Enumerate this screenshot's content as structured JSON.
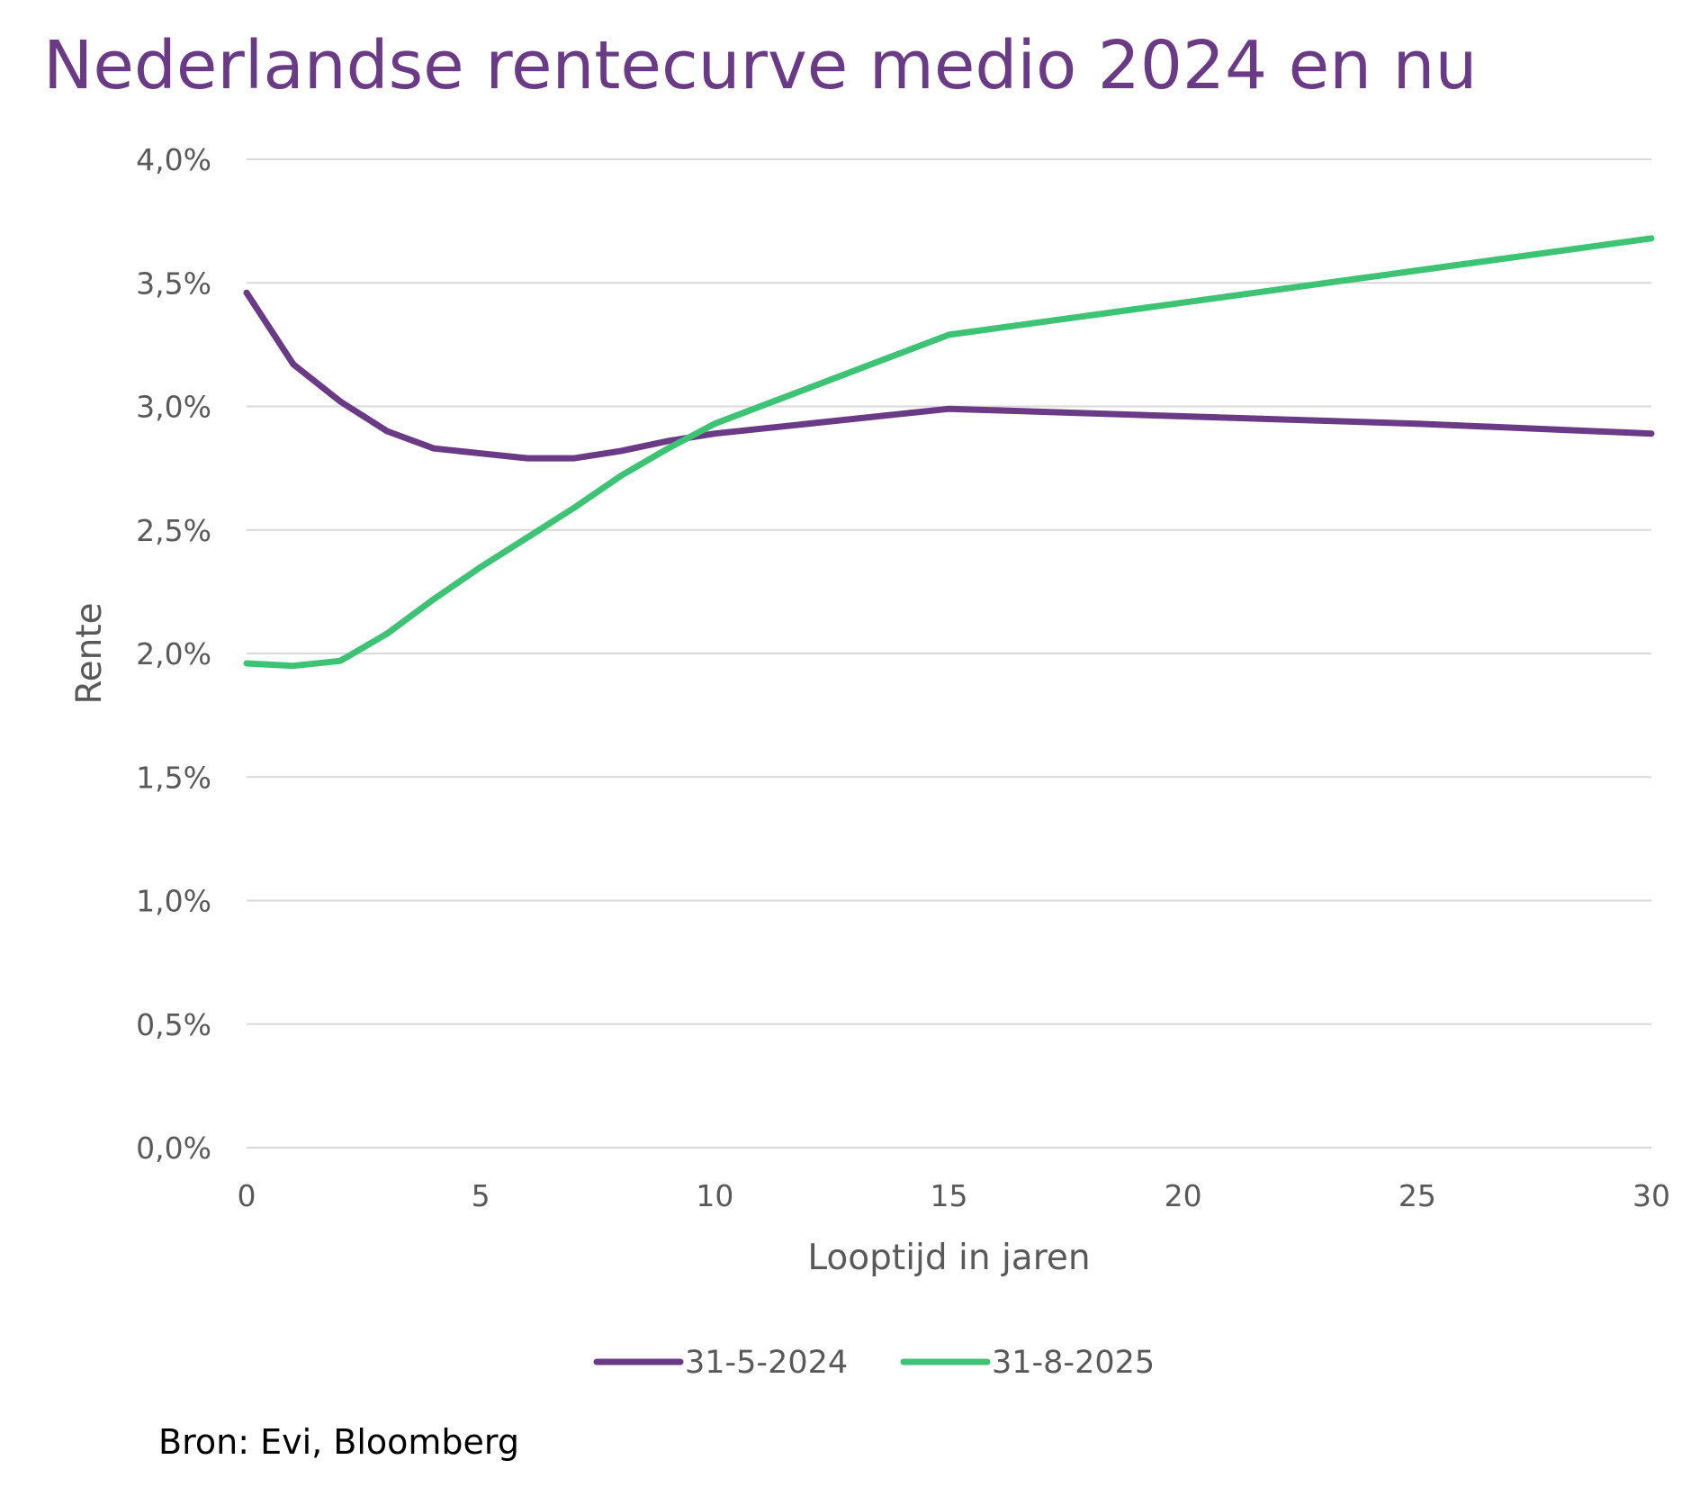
{
  "chart_data": {
    "type": "line",
    "title": "Nederlandse rentecurve medio 2024 en nu",
    "xlabel": "Looptijd in jaren",
    "ylabel": "Rente",
    "xlim": [
      0,
      30
    ],
    "ylim": [
      0,
      4.0
    ],
    "x_ticks": [
      "0",
      "5",
      "10",
      "15",
      "20",
      "25",
      "30"
    ],
    "y_ticks": [
      "0,0%",
      "0,5%",
      "1,0%",
      "1,5%",
      "2,0%",
      "2,5%",
      "3,0%",
      "3,5%",
      "4,0%"
    ],
    "grid": true,
    "legend_position": "bottom",
    "series": [
      {
        "name": "31-5-2024",
        "color": "#6b3a87",
        "x": [
          0,
          1,
          2,
          3,
          4,
          5,
          6,
          7,
          8,
          9,
          10,
          15,
          20,
          25,
          30
        ],
        "values": [
          3.46,
          3.17,
          3.02,
          2.9,
          2.83,
          2.81,
          2.79,
          2.79,
          2.82,
          2.86,
          2.89,
          2.99,
          2.96,
          2.93,
          2.89
        ]
      },
      {
        "name": "31-8-2025",
        "color": "#3cc374",
        "x": [
          0,
          1,
          2,
          3,
          4,
          5,
          6,
          7,
          8,
          9,
          10,
          15,
          20,
          25,
          30
        ],
        "values": [
          1.96,
          1.95,
          1.97,
          2.08,
          2.22,
          2.35,
          2.47,
          2.59,
          2.72,
          2.83,
          2.93,
          3.29,
          3.42,
          3.55,
          3.68
        ]
      }
    ]
  },
  "source": "Bron: Evi, Bloomberg"
}
